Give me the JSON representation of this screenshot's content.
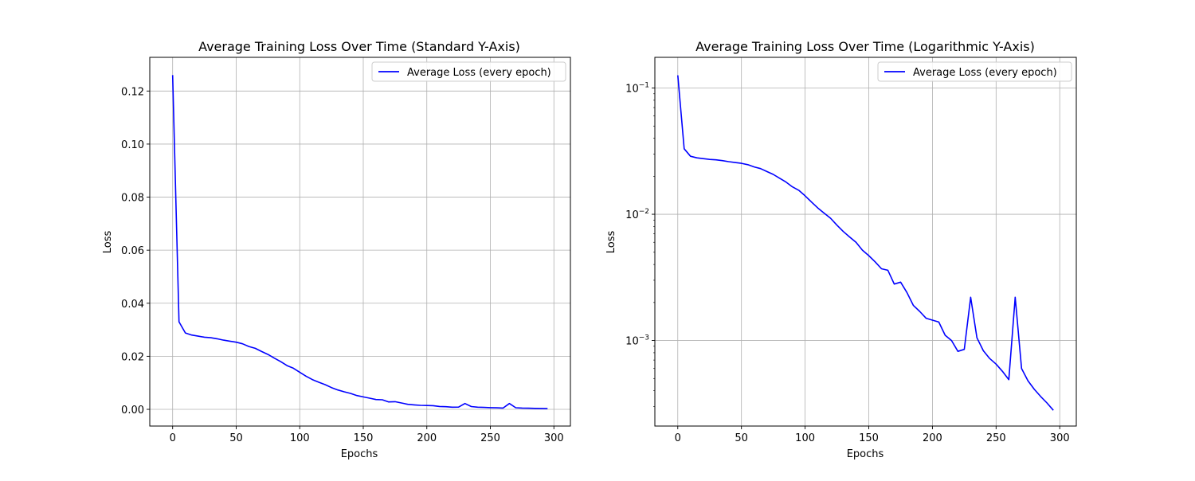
{
  "chart_data": [
    {
      "type": "line",
      "title": "Average Training Loss Over Time (Standard Y-Axis)",
      "xlabel": "Epochs",
      "ylabel": "Loss",
      "yscale": "linear",
      "xlim": [
        -18,
        313
      ],
      "ylim": [
        -0.0063,
        0.1327
      ],
      "xticks": [
        0,
        50,
        100,
        150,
        200,
        250,
        300
      ],
      "yticks": [
        0.0,
        0.02,
        0.04,
        0.06,
        0.08,
        0.1,
        0.12
      ],
      "ytick_labels": [
        "0.00",
        "0.02",
        "0.04",
        "0.06",
        "0.08",
        "0.10",
        "0.12"
      ],
      "grid": true,
      "legend_position": "top-right",
      "series": [
        {
          "name": "Average Loss (every epoch)",
          "color": "#0000ff",
          "x": [
            0,
            5,
            10,
            15,
            20,
            25,
            30,
            35,
            40,
            45,
            50,
            55,
            60,
            65,
            70,
            75,
            80,
            85,
            90,
            95,
            100,
            105,
            110,
            115,
            120,
            125,
            130,
            135,
            140,
            145,
            150,
            155,
            160,
            165,
            170,
            175,
            180,
            185,
            190,
            195,
            200,
            205,
            210,
            215,
            220,
            225,
            230,
            235,
            240,
            245,
            250,
            255,
            260,
            265,
            270,
            275,
            280,
            285,
            290,
            295
          ],
          "y": [
            0.126,
            0.033,
            0.0288,
            0.028,
            0.0276,
            0.0272,
            0.027,
            0.0266,
            0.0261,
            0.0257,
            0.0253,
            0.0247,
            0.0237,
            0.023,
            0.0218,
            0.0207,
            0.0193,
            0.018,
            0.0165,
            0.0155,
            0.014,
            0.0125,
            0.0112,
            0.0102,
            0.0093,
            0.0082,
            0.0073,
            0.0066,
            0.006,
            0.0052,
            0.0047,
            0.0042,
            0.0037,
            0.0036,
            0.0028,
            0.0029,
            0.0024,
            0.0019,
            0.0017,
            0.0015,
            0.00145,
            0.0014,
            0.0011,
            0.001,
            0.00082,
            0.00085,
            0.0022,
            0.00105,
            0.00083,
            0.00072,
            0.00065,
            0.00057,
            0.00049,
            0.0022,
            0.0006,
            0.00048,
            0.00041,
            0.00036,
            0.00032,
            0.00028
          ]
        }
      ]
    },
    {
      "type": "line",
      "title": "Average Training Loss Over Time (Logarithmic Y-Axis)",
      "xlabel": "Epochs",
      "ylabel": "Loss",
      "yscale": "log",
      "xlim": [
        -18,
        313
      ],
      "ylim": [
        0.00021,
        0.175
      ],
      "xticks": [
        0,
        50,
        100,
        150,
        200,
        250,
        300
      ],
      "yticks": [
        0.001,
        0.01,
        0.1
      ],
      "ytick_labels": [
        "10^-3",
        "10^-2",
        "10^-1"
      ],
      "grid": true,
      "legend_position": "top-right",
      "series": [
        {
          "name": "Average Loss (every epoch)",
          "color": "#0000ff",
          "x": [
            0,
            5,
            10,
            15,
            20,
            25,
            30,
            35,
            40,
            45,
            50,
            55,
            60,
            65,
            70,
            75,
            80,
            85,
            90,
            95,
            100,
            105,
            110,
            115,
            120,
            125,
            130,
            135,
            140,
            145,
            150,
            155,
            160,
            165,
            170,
            175,
            180,
            185,
            190,
            195,
            200,
            205,
            210,
            215,
            220,
            225,
            230,
            235,
            240,
            245,
            250,
            255,
            260,
            265,
            270,
            275,
            280,
            285,
            290,
            295
          ],
          "y": [
            0.126,
            0.033,
            0.0288,
            0.028,
            0.0276,
            0.0272,
            0.027,
            0.0266,
            0.0261,
            0.0257,
            0.0253,
            0.0247,
            0.0237,
            0.023,
            0.0218,
            0.0207,
            0.0193,
            0.018,
            0.0165,
            0.0155,
            0.014,
            0.0125,
            0.0112,
            0.0102,
            0.0093,
            0.0082,
            0.0073,
            0.0066,
            0.006,
            0.0052,
            0.0047,
            0.0042,
            0.0037,
            0.0036,
            0.0028,
            0.0029,
            0.0024,
            0.0019,
            0.0017,
            0.0015,
            0.00145,
            0.0014,
            0.0011,
            0.001,
            0.00082,
            0.00085,
            0.0022,
            0.00105,
            0.00083,
            0.00072,
            0.00065,
            0.00057,
            0.00049,
            0.0022,
            0.0006,
            0.00048,
            0.00041,
            0.00036,
            0.00032,
            0.00028
          ]
        }
      ]
    }
  ]
}
